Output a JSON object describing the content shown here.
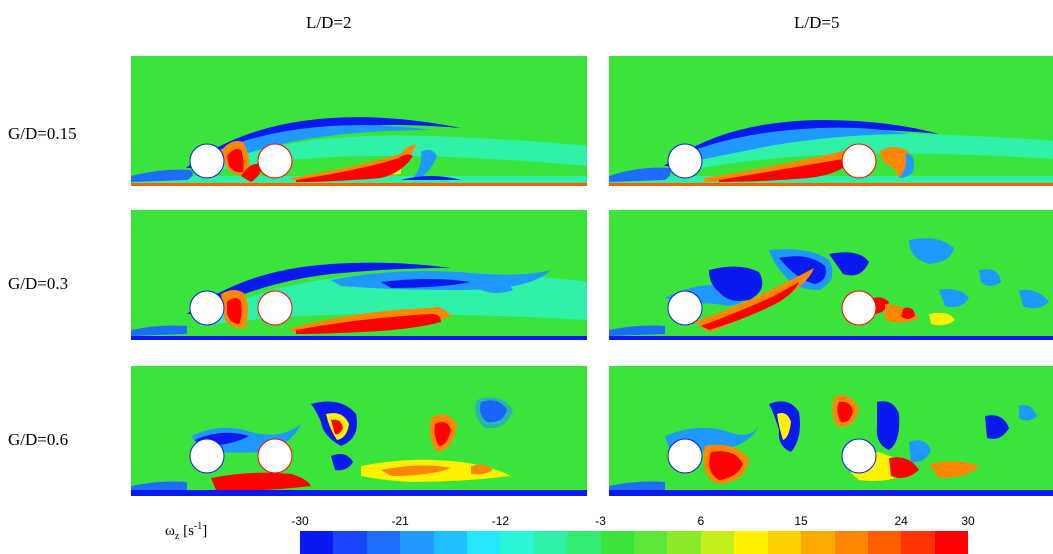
{
  "columns": [
    "L/D=2",
    "L/D=5"
  ],
  "rows": [
    "G/D=0.15",
    "G/D=0.3",
    "G/D=0.6"
  ],
  "colorbar": {
    "label_main": "ω",
    "label_sub": "z",
    "label_unit_pre": " [s",
    "label_unit_sup": "-1",
    "label_unit_post": "]",
    "min": -30,
    "max": 30,
    "tick_labels": [
      "-30",
      "-21",
      "-12",
      "-3",
      "6",
      "15",
      "24",
      "30"
    ],
    "tick_values": [
      -30,
      -21,
      -12,
      -3,
      6,
      15,
      24,
      30
    ],
    "colors": [
      "#0a19f0",
      "#1a46ff",
      "#1f6dff",
      "#1f98ff",
      "#1ec0ff",
      "#24e6ff",
      "#2af5d6",
      "#2ef0a5",
      "#33ec72",
      "#3ae43a",
      "#5ce63a",
      "#8aea2a",
      "#c4f01a",
      "#fff200",
      "#ffd000",
      "#ffaa00",
      "#ff8600",
      "#ff5e00",
      "#ff3300",
      "#ff0000"
    ]
  },
  "field_colors": {
    "background": "#3ae43a",
    "neg_strong": "#0a19f0",
    "neg_mid": "#1f98ff",
    "neg_weak": "#2af5d6",
    "pos_weak": "#fff200",
    "pos_mid": "#ff8600",
    "pos_strong": "#ff0000",
    "cylinder": "#ffffff"
  }
}
